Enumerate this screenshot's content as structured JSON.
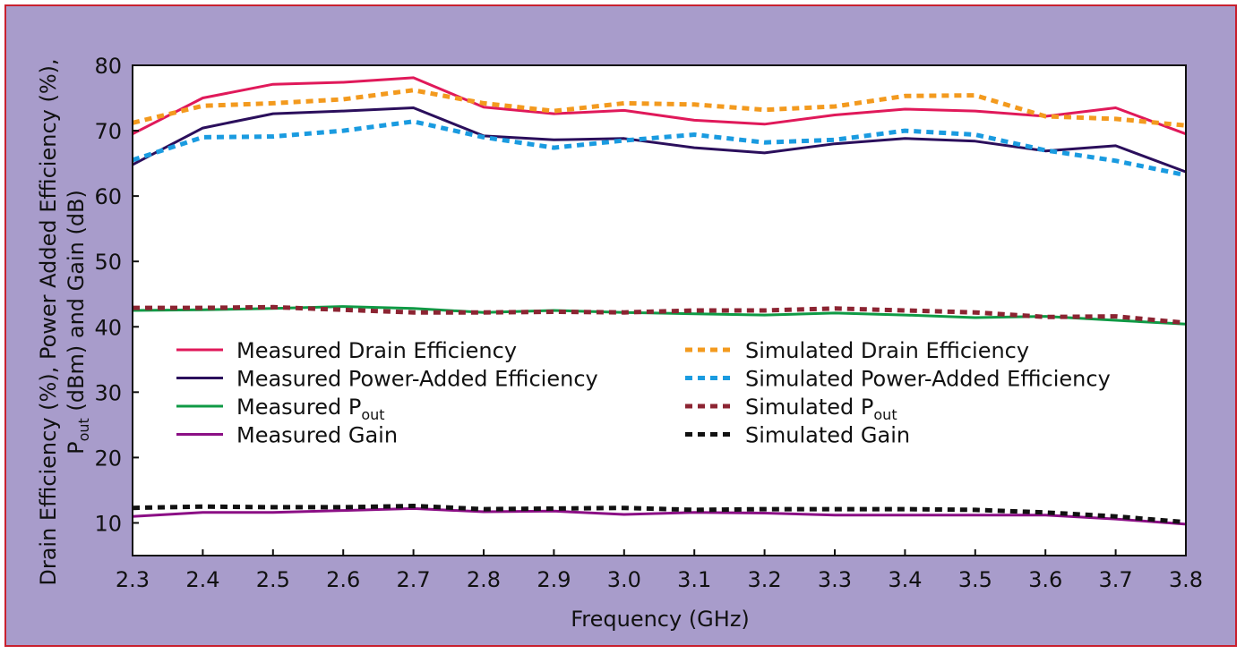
{
  "chart_data": {
    "type": "line",
    "xlabel": "Frequency (GHz)",
    "ylabel_line1": "Drain Efficiency (%), Power Added Efficiency (%),",
    "ylabel_line2_main": "P",
    "ylabel_line2_sub": "out",
    "ylabel_line2_rest": " (dBm) and Gain (dB)",
    "xlim": [
      2.3,
      3.8
    ],
    "ylim": [
      5,
      80
    ],
    "x": [
      2.3,
      2.4,
      2.5,
      2.6,
      2.7,
      2.8,
      2.9,
      3.0,
      3.1,
      3.2,
      3.3,
      3.4,
      3.5,
      3.6,
      3.7,
      3.8
    ],
    "x_ticks": [
      "2.3",
      "2.4",
      "2.5",
      "2.6",
      "2.7",
      "2.8",
      "2.9",
      "3.0",
      "3.1",
      "3.2",
      "3.3",
      "3.4",
      "3.5",
      "3.6",
      "3.7",
      "3.8"
    ],
    "y_ticks": [
      10,
      20,
      30,
      40,
      50,
      60,
      70,
      80
    ],
    "grid": false,
    "legend_placement": "center",
    "series": [
      {
        "name": "Measured Drain Efficiency",
        "name_main": "Measured Drain Efficiency",
        "name_sub": "",
        "color": "#e0195a",
        "style": "solid",
        "values": [
          69.5,
          75.0,
          77.1,
          77.4,
          78.1,
          73.6,
          72.6,
          73.1,
          71.6,
          71.0,
          72.4,
          73.3,
          73.0,
          72.2,
          73.5,
          69.5
        ]
      },
      {
        "name": "Measured Power-Added Efficiency",
        "name_main": "Measured Power-Added Efficiency",
        "name_sub": "",
        "color": "#2b0f5c",
        "style": "solid",
        "values": [
          64.8,
          70.4,
          72.6,
          73.0,
          73.5,
          69.2,
          68.6,
          68.8,
          67.4,
          66.6,
          68.0,
          68.8,
          68.4,
          66.9,
          67.7,
          63.7
        ]
      },
      {
        "name": "Measured Pout",
        "name_main": "Measured P",
        "name_sub": "out",
        "color": "#0f9a45",
        "style": "solid",
        "values": [
          42.5,
          42.6,
          42.8,
          43.1,
          42.8,
          42.2,
          42.5,
          42.2,
          42.0,
          41.8,
          42.1,
          41.8,
          41.4,
          41.6,
          41.0,
          40.4
        ]
      },
      {
        "name": "Measured Gain",
        "name_main": "Measured Gain",
        "name_sub": "",
        "color": "#8b0f85",
        "style": "solid",
        "values": [
          11.0,
          11.6,
          11.6,
          11.9,
          12.2,
          11.7,
          11.8,
          11.3,
          11.6,
          11.5,
          11.2,
          11.2,
          11.2,
          11.2,
          10.6,
          9.8
        ]
      },
      {
        "name": "Simulated Drain Efficiency",
        "name_main": "Simulated Drain Efficiency",
        "name_sub": "",
        "color": "#f39a1e",
        "style": "dotted",
        "values": [
          71.2,
          73.8,
          74.2,
          74.8,
          76.2,
          74.2,
          73.0,
          74.2,
          74.0,
          73.2,
          73.7,
          75.3,
          75.4,
          72.2,
          71.8,
          70.8
        ]
      },
      {
        "name": "Simulated Power-Added Efficiency",
        "name_main": "Simulated Power-Added Efficiency",
        "name_sub": "",
        "color": "#1a9be0",
        "style": "dotted",
        "values": [
          65.5,
          69.0,
          69.1,
          70.0,
          71.4,
          69.0,
          67.4,
          68.5,
          69.4,
          68.2,
          68.6,
          70.0,
          69.4,
          67.0,
          65.4,
          63.2
        ]
      },
      {
        "name": "Simulated Pout",
        "name_main": "Simulated P",
        "name_sub": "out",
        "color": "#8c2432",
        "style": "dotted",
        "values": [
          42.9,
          42.9,
          43.0,
          42.6,
          42.2,
          42.2,
          42.3,
          42.2,
          42.5,
          42.5,
          42.8,
          42.5,
          42.2,
          41.5,
          41.6,
          40.6
        ]
      },
      {
        "name": "Simulated Gain",
        "name_main": "Simulated Gain",
        "name_sub": "",
        "color": "#111111",
        "style": "dotted",
        "values": [
          12.3,
          12.5,
          12.4,
          12.4,
          12.6,
          12.1,
          12.2,
          12.3,
          12.0,
          12.1,
          12.1,
          12.1,
          12.0,
          11.6,
          11.0,
          10.1
        ]
      }
    ]
  }
}
